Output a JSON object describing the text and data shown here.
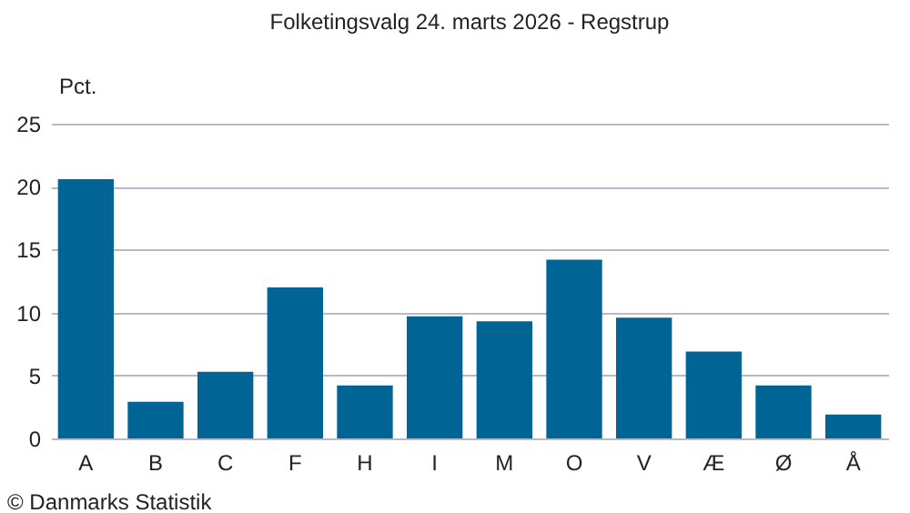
{
  "chart_data": {
    "type": "bar",
    "title": "Folketingsvalg 24. marts 2026 - Regstrup",
    "ylabel": "Pct.",
    "categories": [
      "A",
      "B",
      "C",
      "F",
      "H",
      "I",
      "M",
      "O",
      "V",
      "Æ",
      "Ø",
      "Å"
    ],
    "values": [
      20.6,
      2.9,
      5.3,
      12.0,
      4.2,
      9.7,
      9.3,
      14.2,
      9.6,
      6.9,
      4.2,
      1.9
    ],
    "color": "#006495",
    "ylim": [
      0,
      25
    ],
    "yticks": [
      0,
      5,
      10,
      15,
      20,
      25
    ],
    "grid": "y",
    "annotations": [
      "© Danmarks Statistik"
    ]
  }
}
